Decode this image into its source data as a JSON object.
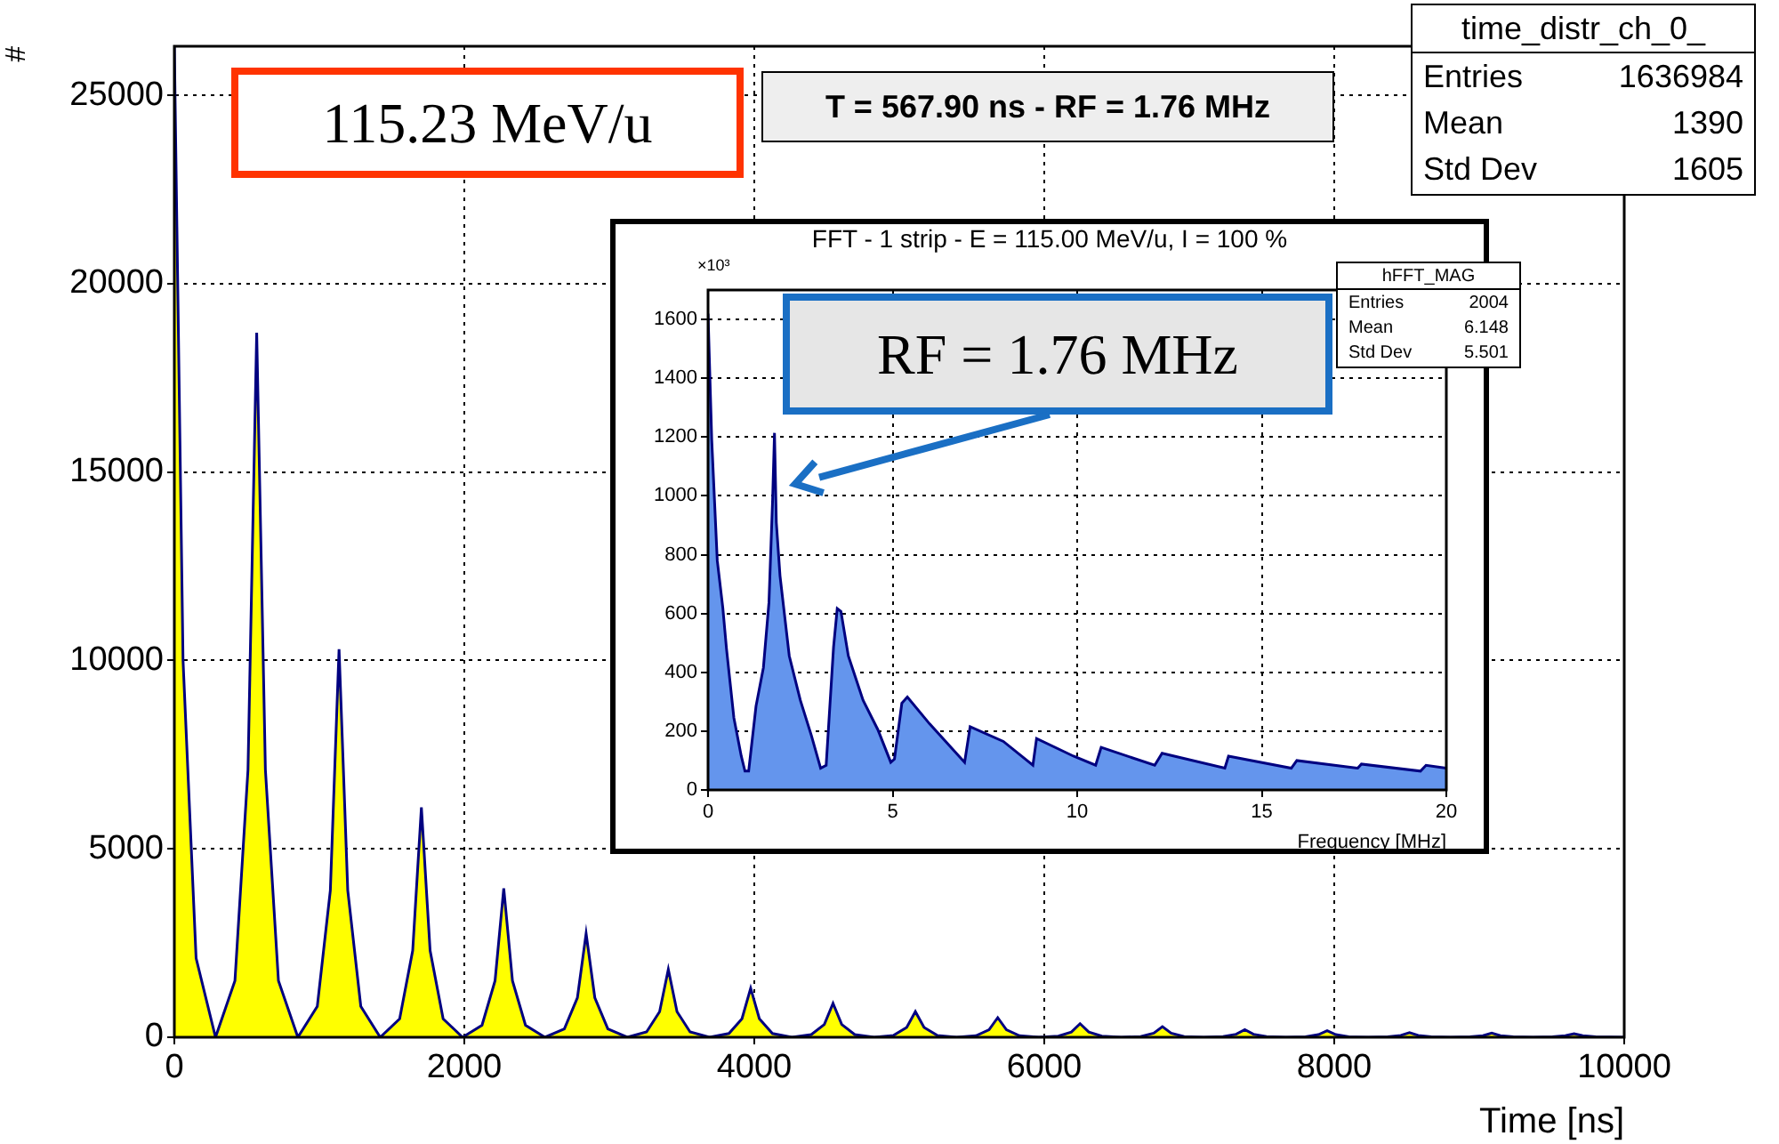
{
  "chart_data": [
    {
      "type": "area",
      "xlabel": "Time [ns]",
      "ylabel": "#",
      "color": "#ffff00",
      "marker": "none",
      "grid": true,
      "xlim": [
        0,
        10000
      ],
      "ylim": [
        0,
        26300
      ],
      "xticks": [
        0,
        2000,
        4000,
        6000,
        8000,
        10000
      ],
      "yticks": [
        0,
        5000,
        10000,
        15000,
        20000,
        25000
      ],
      "x": [
        0,
        60,
        150,
        284,
        418,
        508,
        568,
        628,
        718,
        852,
        986,
        1076,
        1136,
        1196,
        1286,
        1420,
        1554,
        1644,
        1704,
        1764,
        1854,
        1988,
        2122,
        2212,
        2272,
        2332,
        2422,
        2556,
        2690,
        2780,
        2840,
        2900,
        2990,
        3124,
        3257,
        3347,
        3407,
        3467,
        3557,
        3691,
        3825,
        3915,
        3975,
        4035,
        4125,
        4259,
        4393,
        4483,
        4543,
        4603,
        4693,
        4827,
        4961,
        5051,
        5111,
        5171,
        5261,
        5395,
        5529,
        5619,
        5679,
        5739,
        5829,
        5963,
        6097,
        6187,
        6247,
        6307,
        6397,
        6531,
        6665,
        6755,
        6815,
        6875,
        6965,
        7099,
        7233,
        7323,
        7383,
        7443,
        7533,
        7667,
        7801,
        7891,
        7951,
        8011,
        8101,
        8235,
        8369,
        8459,
        8519,
        8579,
        8669,
        8803,
        8936,
        9026,
        9086,
        9146,
        9236,
        9370,
        9504,
        9594,
        9654,
        9714,
        9804,
        10000
      ],
      "values": [
        26300,
        10000,
        2100,
        0,
        1500,
        7100,
        18700,
        7100,
        1500,
        0,
        820,
        3900,
        10300,
        3900,
        820,
        0,
        490,
        2300,
        6100,
        2300,
        490,
        0,
        320,
        1500,
        3950,
        1500,
        320,
        0,
        220,
        1050,
        2750,
        1050,
        220,
        0,
        140,
        680,
        1800,
        680,
        140,
        0,
        100,
        490,
        1300,
        490,
        100,
        0,
        70,
        340,
        900,
        340,
        70,
        0,
        50,
        260,
        680,
        260,
        50,
        0,
        40,
        200,
        520,
        200,
        40,
        0,
        30,
        140,
        360,
        140,
        30,
        0,
        20,
        110,
        280,
        110,
        20,
        0,
        20,
        80,
        200,
        80,
        20,
        0,
        10,
        70,
        175,
        70,
        10,
        0,
        10,
        50,
        125,
        50,
        10,
        0,
        10,
        40,
        110,
        40,
        10,
        0,
        10,
        40,
        95,
        40,
        10,
        0
      ],
      "annotations": [
        "115.23 MeV/u",
        "T = 567.90 ns - RF = 1.76 MHz",
        "time_distr_ch_0_",
        "Entries",
        "1636984",
        "Mean",
        "1390",
        "Std Dev",
        "1605"
      ]
    },
    {
      "type": "area",
      "title": "FFT - 1 strip - E = 115.00 MeV/u, I = 100 %",
      "xlabel": "Frequency [MHz]",
      "color": "#6495ed",
      "marker": "none",
      "grid": true,
      "xlim": [
        0,
        20
      ],
      "ylim": [
        0,
        1700
      ],
      "xticks": [
        0,
        5,
        10,
        15,
        20
      ],
      "yticks": [
        0,
        200,
        400,
        600,
        800,
        1000,
        1200,
        1400,
        1600
      ],
      "x": [
        0,
        0.1,
        0.25,
        0.4,
        0.5,
        0.7,
        0.9,
        1.0,
        1.1,
        1.3,
        1.5,
        1.65,
        1.75,
        1.8,
        1.85,
        1.95,
        2.2,
        2.5,
        2.8,
        3.05,
        3.2,
        3.4,
        3.5,
        3.6,
        3.8,
        4.2,
        4.6,
        4.95,
        5.05,
        5.25,
        5.4,
        6.0,
        6.95,
        7.1,
        8.0,
        8.8,
        8.9,
        9.9,
        10.5,
        10.65,
        12.1,
        12.3,
        14.0,
        14.1,
        15.8,
        15.95,
        17.6,
        17.7,
        19.3,
        19.45,
        20
      ],
      "values": [
        1620,
        1190,
        780,
        620,
        480,
        245,
        115,
        64,
        64,
        285,
        416,
        637,
        990,
        1214,
        909,
        728,
        456,
        305,
        185,
        74,
        84,
        486,
        617,
        607,
        456,
        305,
        205,
        94,
        105,
        295,
        316,
        225,
        94,
        215,
        165,
        84,
        175,
        115,
        84,
        145,
        84,
        125,
        74,
        115,
        74,
        100,
        74,
        88,
        64,
        84,
        74
      ],
      "annotations": [
        "×10³",
        "hFFT_MAG",
        "Entries",
        "2004",
        "Mean",
        "6.148",
        "Std Dev",
        "5.501",
        "RF = 1.76 MHz"
      ]
    }
  ]
}
